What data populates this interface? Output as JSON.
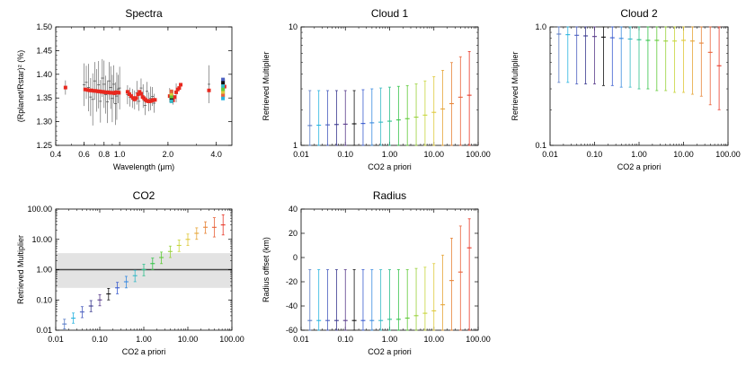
{
  "chart_data": [
    {
      "id": "spectra",
      "type": "scatter",
      "title": "Spectra",
      "xlabel": "Wavelength (μm)",
      "ylabel": "(Rplanet/Rstar)² (%)",
      "xscale": "log",
      "xlim": [
        0.4,
        5.0
      ],
      "ylim": [
        1.25,
        1.5
      ],
      "xticks": [
        0.4,
        0.6,
        0.8,
        1.0,
        2.0,
        4.0
      ],
      "xtick_labels": [
        "0.4",
        "0.6",
        "0.8",
        "1.0",
        "2.0",
        "4.0"
      ],
      "yticks": [
        1.25,
        1.3,
        1.35,
        1.4,
        1.45,
        1.5
      ],
      "ytick_labels": [
        "1.25",
        "1.30",
        "1.35",
        "1.40",
        "1.45",
        "1.50"
      ],
      "model": {
        "color": "#e8281e",
        "x": [
          0.46,
          0.61,
          0.63,
          0.65,
          0.67,
          0.69,
          0.71,
          0.73,
          0.75,
          0.77,
          0.79,
          0.81,
          0.83,
          0.85,
          0.87,
          0.89,
          0.91,
          0.93,
          0.95,
          0.97,
          0.99,
          1.12,
          1.15,
          1.18,
          1.21,
          1.24,
          1.27,
          1.3,
          1.33,
          1.36,
          1.39,
          1.42,
          1.45,
          1.48,
          1.51,
          1.54,
          1.57,
          1.6,
          1.63,
          1.66,
          2.05,
          2.1,
          2.15,
          2.2,
          2.25,
          2.3,
          2.35,
          2.4,
          3.6,
          4.5
        ],
        "y": [
          1.372,
          1.368,
          1.367,
          1.366,
          1.366,
          1.365,
          1.365,
          1.364,
          1.364,
          1.363,
          1.363,
          1.362,
          1.362,
          1.362,
          1.361,
          1.361,
          1.361,
          1.36,
          1.362,
          1.362,
          1.361,
          1.363,
          1.358,
          1.354,
          1.35,
          1.347,
          1.35,
          1.358,
          1.363,
          1.359,
          1.352,
          1.349,
          1.346,
          1.344,
          1.343,
          1.343,
          1.344,
          1.345,
          1.346,
          1.346,
          1.354,
          1.35,
          1.345,
          1.352,
          1.362,
          1.368,
          1.371,
          1.378,
          1.366,
          1.374
        ]
      },
      "observed": {
        "color": "#555555",
        "x": [
          0.46,
          0.6,
          0.62,
          0.64,
          0.66,
          0.68,
          0.7,
          0.72,
          0.74,
          0.76,
          0.78,
          0.8,
          0.82,
          0.84,
          0.86,
          0.88,
          0.9,
          0.92,
          0.94,
          0.96,
          0.98,
          1.0,
          1.12,
          1.16,
          1.2,
          1.24,
          1.28,
          1.32,
          1.36,
          1.4,
          1.44,
          1.48,
          1.52,
          1.56,
          1.6,
          1.64,
          2.05,
          2.15,
          2.25,
          3.6,
          4.5
        ],
        "y": [
          1.372,
          1.378,
          1.383,
          1.372,
          1.352,
          1.347,
          1.386,
          1.366,
          1.378,
          1.343,
          1.392,
          1.379,
          1.357,
          1.342,
          1.386,
          1.372,
          1.349,
          1.379,
          1.338,
          1.354,
          1.369,
          1.371,
          1.357,
          1.352,
          1.349,
          1.346,
          1.361,
          1.343,
          1.371,
          1.354,
          1.334,
          1.364,
          1.342,
          1.349,
          1.353,
          1.339,
          1.356,
          1.351,
          1.361,
          1.379,
          1.371
        ],
        "err": [
          0.015,
          0.045,
          0.035,
          0.05,
          0.04,
          0.055,
          0.04,
          0.045,
          0.05,
          0.045,
          0.04,
          0.05,
          0.04,
          0.045,
          0.04,
          0.045,
          0.05,
          0.04,
          0.045,
          0.05,
          0.03,
          0.045,
          0.02,
          0.02,
          0.02,
          0.02,
          0.025,
          0.02,
          0.02,
          0.025,
          0.02,
          0.02,
          0.02,
          0.025,
          0.02,
          0.02,
          0.015,
          0.015,
          0.02,
          0.04,
          0.02
        ]
      },
      "bins": {
        "x": [
          2.1,
          4.4
        ],
        "points_y": [
          [
            1.35,
            1.346,
            1.343,
            1.353,
            1.359,
            1.364
          ],
          [
            1.389,
            1.382,
            1.375,
            1.368,
            1.361,
            1.355,
            1.349
          ]
        ]
      }
    },
    {
      "id": "cloud1",
      "type": "scatter",
      "title": "Cloud 1",
      "xlabel": "CO2 a priori",
      "ylabel": "Retrieved Multiplier",
      "xscale": "log",
      "yscale": "log",
      "xlim": [
        0.01,
        100
      ],
      "ylim": [
        1,
        10
      ],
      "xticks": [
        0.01,
        0.1,
        1,
        10,
        100
      ],
      "xtick_labels": [
        "0.01",
        "0.10",
        "1.00",
        "10.00",
        "100.00"
      ],
      "yticks": [
        1,
        10
      ],
      "ytick_labels": [
        "1",
        "10"
      ],
      "x": [
        0.0158,
        0.0251,
        0.0398,
        0.0631,
        0.1,
        0.1585,
        0.2512,
        0.3981,
        0.631,
        1.0,
        1.585,
        2.512,
        3.981,
        6.31,
        10.0,
        15.85,
        25.12,
        39.81,
        63.1
      ],
      "y": [
        1.47,
        1.48,
        1.49,
        1.5,
        1.51,
        1.52,
        1.53,
        1.55,
        1.57,
        1.6,
        1.64,
        1.68,
        1.73,
        1.8,
        1.9,
        2.03,
        2.25,
        2.55,
        2.65
      ],
      "lo": [
        1.0,
        1.0,
        1.0,
        1.0,
        1.0,
        1.0,
        1.0,
        1.0,
        1.0,
        1.0,
        1.0,
        1.0,
        1.0,
        1.0,
        1.0,
        1.0,
        1.0,
        1.0,
        1.0
      ],
      "hi": [
        2.9,
        2.9,
        2.9,
        2.9,
        2.9,
        2.9,
        2.95,
        3.0,
        3.05,
        3.1,
        3.15,
        3.2,
        3.3,
        3.5,
        3.8,
        4.3,
        5.0,
        5.6,
        6.2
      ]
    },
    {
      "id": "cloud2",
      "type": "scatter",
      "title": "Cloud 2",
      "xlabel": "CO2 a priori",
      "ylabel": "Retrieved Multiplier",
      "xscale": "log",
      "yscale": "log",
      "xlim": [
        0.01,
        100
      ],
      "ylim": [
        0.1,
        1.0
      ],
      "xticks": [
        0.01,
        0.1,
        1,
        10,
        100
      ],
      "xtick_labels": [
        "0.01",
        "0.10",
        "1.00",
        "10.00",
        "100.00"
      ],
      "yticks": [
        0.1,
        1.0
      ],
      "ytick_labels": [
        "0.1",
        "1.0"
      ],
      "x": [
        0.0158,
        0.0251,
        0.0398,
        0.0631,
        0.1,
        0.1585,
        0.2512,
        0.3981,
        0.631,
        1.0,
        1.585,
        2.512,
        3.981,
        6.31,
        10.0,
        15.85,
        25.12,
        39.81,
        63.1
      ],
      "y": [
        0.87,
        0.86,
        0.85,
        0.84,
        0.83,
        0.82,
        0.81,
        0.8,
        0.79,
        0.78,
        0.77,
        0.77,
        0.76,
        0.76,
        0.77,
        0.76,
        0.73,
        0.61,
        0.47
      ],
      "lo": [
        0.34,
        0.34,
        0.33,
        0.33,
        0.33,
        0.32,
        0.32,
        0.31,
        0.31,
        0.3,
        0.3,
        0.29,
        0.29,
        0.28,
        0.28,
        0.27,
        0.26,
        0.22,
        0.2
      ],
      "hi": [
        1.0,
        1.0,
        1.0,
        1.0,
        1.0,
        1.0,
        1.0,
        1.0,
        1.0,
        1.0,
        1.0,
        1.0,
        1.0,
        1.0,
        1.0,
        1.0,
        1.0,
        1.0,
        1.0
      ]
    },
    {
      "id": "co2",
      "type": "scatter",
      "title": "CO2",
      "xlabel": "CO2 a priori",
      "ylabel": "Retrieved Multiplier",
      "xscale": "log",
      "yscale": "log",
      "xlim": [
        0.01,
        100
      ],
      "ylim": [
        0.01,
        100
      ],
      "xticks": [
        0.01,
        0.1,
        1,
        10,
        100
      ],
      "xtick_labels": [
        "0.01",
        "0.10",
        "1.00",
        "10.00",
        "100.00"
      ],
      "yticks": [
        0.01,
        0.1,
        1,
        10,
        100
      ],
      "ytick_labels": [
        "0.01",
        "0.10",
        "1.00",
        "10.00",
        "100.00"
      ],
      "reference_line": 1.0,
      "band": [
        0.25,
        3.5
      ],
      "x": [
        0.0158,
        0.0251,
        0.0398,
        0.0631,
        0.1,
        0.1585,
        0.2512,
        0.3981,
        0.631,
        1.0,
        1.585,
        2.512,
        3.981,
        6.31,
        10.0,
        15.85,
        25.12,
        39.81,
        63.1
      ],
      "y": [
        0.016,
        0.025,
        0.04,
        0.063,
        0.1,
        0.158,
        0.251,
        0.398,
        0.631,
        1.0,
        1.585,
        2.512,
        3.981,
        6.31,
        10.0,
        15.85,
        25.12,
        25.0,
        30.0
      ],
      "lo": [
        0.011,
        0.017,
        0.026,
        0.041,
        0.064,
        0.1,
        0.16,
        0.25,
        0.4,
        0.63,
        1.0,
        1.58,
        2.51,
        3.98,
        6.3,
        10.0,
        15.8,
        12.0,
        14.0
      ],
      "hi": [
        0.023,
        0.037,
        0.06,
        0.095,
        0.15,
        0.24,
        0.38,
        0.6,
        0.95,
        1.5,
        2.4,
        3.8,
        6.0,
        9.5,
        15.0,
        24.0,
        38.0,
        52.0,
        65.0
      ]
    },
    {
      "id": "radius",
      "type": "scatter",
      "title": "Radius",
      "xlabel": "CO2 a priori",
      "ylabel": "Radius offset (km)",
      "xscale": "log",
      "xlim": [
        0.01,
        100
      ],
      "ylim": [
        -60,
        40
      ],
      "xticks": [
        0.01,
        0.1,
        1,
        10,
        100
      ],
      "xtick_labels": [
        "0.01",
        "0.10",
        "1.00",
        "10.00",
        "100.00"
      ],
      "yticks": [
        -60,
        -40,
        -20,
        0,
        20,
        40
      ],
      "ytick_labels": [
        "-60",
        "-40",
        "-20",
        "0",
        "20",
        "40"
      ],
      "x": [
        0.0158,
        0.0251,
        0.0398,
        0.0631,
        0.1,
        0.1585,
        0.2512,
        0.3981,
        0.631,
        1.0,
        1.585,
        2.512,
        3.981,
        6.31,
        10.0,
        15.85,
        25.12,
        39.81,
        63.1
      ],
      "y": [
        -52,
        -52,
        -52,
        -52,
        -52,
        -52,
        -52,
        -52,
        -52,
        -51,
        -51,
        -50,
        -48,
        -46,
        -44,
        -39,
        -19,
        -12,
        8
      ],
      "lo": [
        -60,
        -60,
        -60,
        -60,
        -60,
        -60,
        -60,
        -60,
        -60,
        -60,
        -60,
        -60,
        -60,
        -60,
        -60,
        -60,
        -60,
        -60,
        -60
      ],
      "hi": [
        -10,
        -10,
        -10,
        -10,
        -10,
        -10,
        -10,
        -10,
        -10,
        -10,
        -10,
        -10,
        -9,
        -8,
        -5,
        2,
        16,
        26,
        32
      ]
    }
  ],
  "colors": {
    "series": [
      "#5a7cc6",
      "#2ab4e0",
      "#4b5fc0",
      "#3b3a8f",
      "#5a3d8c",
      "#111111",
      "#3a5ccf",
      "#3a8be0",
      "#36b8c6",
      "#2ec08b",
      "#35c44a",
      "#62cb3a",
      "#9ad23c",
      "#c8d63c",
      "#dfc83a",
      "#e6a63a",
      "#e8863a",
      "#e8623a",
      "#e83a2a"
    ],
    "band": "#e3e3e3",
    "reference_line": "#444444",
    "model": "#e8281e"
  }
}
